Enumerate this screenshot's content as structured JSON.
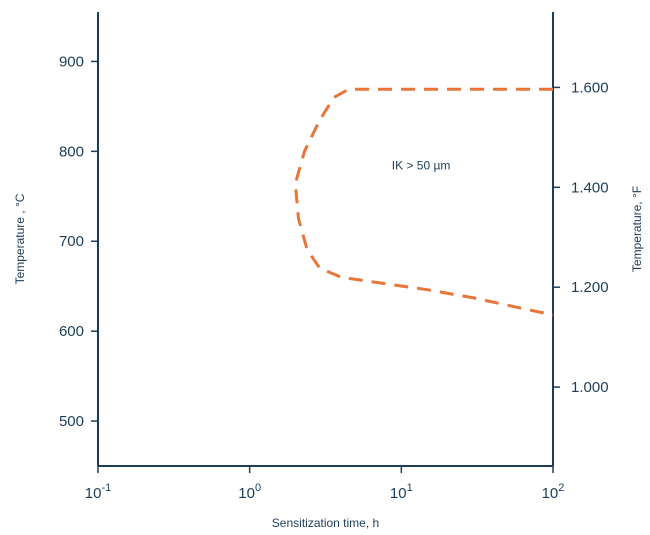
{
  "chart_data": {
    "type": "line",
    "title": "",
    "xlabel": "Sensitization time, h",
    "ylabel": "Temperature , °C",
    "y2label": "Temperature, °F",
    "x_scale": "log",
    "xlim": [
      0.1,
      100
    ],
    "ylim": [
      450,
      955
    ],
    "y2lim": [
      842,
      1751
    ],
    "grid": false,
    "x_ticks": [
      {
        "value": 0.1,
        "base": "10",
        "exp": "-1"
      },
      {
        "value": 1,
        "base": "10",
        "exp": "0"
      },
      {
        "value": 10,
        "base": "10",
        "exp": "1"
      },
      {
        "value": 100,
        "base": "10",
        "exp": "2"
      }
    ],
    "y_ticks": [
      {
        "value": 500,
        "label": "500"
      },
      {
        "value": 600,
        "label": "600"
      },
      {
        "value": 700,
        "label": "700"
      },
      {
        "value": 800,
        "label": "800"
      },
      {
        "value": 900,
        "label": "900"
      }
    ],
    "y2_ticks": [
      {
        "value": 1000,
        "label": "1.000"
      },
      {
        "value": 1200,
        "label": "1.200"
      },
      {
        "value": 1400,
        "label": "1.400"
      },
      {
        "value": 1600,
        "label": "1.600"
      }
    ],
    "series": [
      {
        "color": "#e8763a",
        "style": "dashed",
        "points": [
          {
            "x": 100,
            "y": 869
          },
          {
            "x": 4.5,
            "y": 869
          },
          {
            "x": 3.6,
            "y": 860
          },
          {
            "x": 2.9,
            "y": 835
          },
          {
            "x": 2.3,
            "y": 800
          },
          {
            "x": 2.0,
            "y": 764
          },
          {
            "x": 2.1,
            "y": 725
          },
          {
            "x": 2.4,
            "y": 690
          },
          {
            "x": 2.9,
            "y": 670
          },
          {
            "x": 4.0,
            "y": 660
          },
          {
            "x": 7.0,
            "y": 654
          },
          {
            "x": 15.0,
            "y": 646
          },
          {
            "x": 30.0,
            "y": 637
          },
          {
            "x": 60.0,
            "y": 626
          },
          {
            "x": 100,
            "y": 618
          }
        ]
      }
    ],
    "annotations": [
      {
        "text": "IK > 50 µm",
        "x": 13.5,
        "y": 784
      }
    ]
  }
}
